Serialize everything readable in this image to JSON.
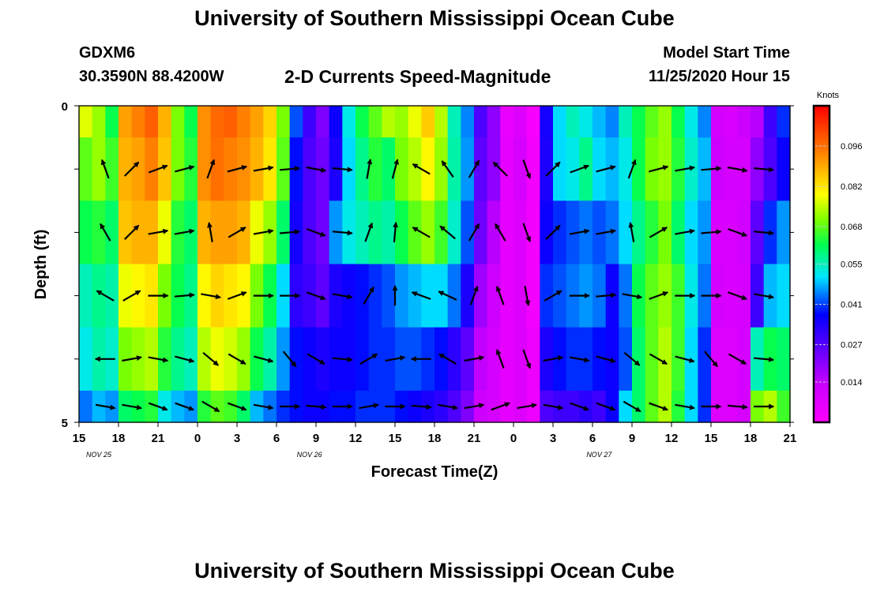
{
  "header": {
    "title": "University of Southern Mississippi Ocean Cube",
    "station_id": "GDXM6",
    "coordinates": "30.3590N 88.4200W",
    "plot_title": "2-D Currents Speed-Magnitude",
    "model_start_label": "Model Start Time",
    "model_start_value": "11/25/2020 Hour 15"
  },
  "footer": {
    "title": "University of Southern Mississippi Ocean Cube"
  },
  "chart_data": {
    "type": "heatmap",
    "title": "2-D Currents Speed-Magnitude",
    "xlabel": "Forecast Time(Z)",
    "ylabel": "Depth (ft)",
    "x_tick_labels": [
      "15",
      "18",
      "21",
      "0",
      "3",
      "6",
      "9",
      "12",
      "15",
      "18",
      "21",
      "0",
      "3",
      "6",
      "9",
      "12",
      "15",
      "18",
      "21"
    ],
    "date_labels": [
      {
        "label": "NOV  25",
        "forecast_hour": 1.5
      },
      {
        "label": "NOV  26",
        "forecast_hour": 17.5
      },
      {
        "label": "NOV  27",
        "forecast_hour": 39.5
      }
    ],
    "x_range_forecast_hours": [
      0,
      54
    ],
    "y_tick_labels": [
      "0",
      "5"
    ],
    "y_range_ft": [
      0,
      5
    ],
    "colorbar": {
      "title": "Knots",
      "tick_labels": [
        "0.096",
        "0.082",
        "0.068",
        "0.055",
        "0.041",
        "0.027",
        "0.014"
      ],
      "range": [
        0,
        0.11
      ]
    },
    "depth_levels_ft": [
      0.25,
      1,
      2,
      3,
      4,
      4.75
    ],
    "time_hours": [
      0,
      1,
      2,
      3,
      4,
      5,
      6,
      7,
      8,
      9,
      10,
      11,
      12,
      13,
      14,
      15,
      16,
      17,
      18,
      19,
      20,
      21,
      22,
      23,
      24,
      25,
      26,
      27,
      28,
      29,
      30,
      31,
      32,
      33,
      34,
      35,
      36,
      37,
      38,
      39,
      40,
      41,
      42,
      43,
      44,
      45,
      46,
      47,
      48,
      49,
      50,
      51,
      52,
      53
    ],
    "speed_knots": [
      [
        0.077,
        0.072,
        0.062,
        0.09,
        0.094,
        0.098,
        0.088,
        0.07,
        0.062,
        0.092,
        0.097,
        0.098,
        0.094,
        0.09,
        0.084,
        0.07,
        0.042,
        0.03,
        0.022,
        0.036,
        0.052,
        0.062,
        0.068,
        0.074,
        0.072,
        0.078,
        0.085,
        0.074,
        0.055,
        0.045,
        0.028,
        0.02,
        0.005,
        0.008,
        0.002,
        0.035,
        0.05,
        0.055,
        0.052,
        0.048,
        0.045,
        0.055,
        0.062,
        0.068,
        0.072,
        0.062,
        0.052,
        0.045,
        0.01,
        0.009,
        0.012,
        0.015,
        0.03,
        0.04
      ],
      [
        0.068,
        0.072,
        0.066,
        0.088,
        0.09,
        0.094,
        0.086,
        0.07,
        0.064,
        0.092,
        0.096,
        0.094,
        0.092,
        0.088,
        0.082,
        0.068,
        0.038,
        0.028,
        0.024,
        0.034,
        0.05,
        0.058,
        0.064,
        0.06,
        0.07,
        0.074,
        0.08,
        0.072,
        0.056,
        0.046,
        0.026,
        0.02,
        0.006,
        0.01,
        0.003,
        0.034,
        0.05,
        0.052,
        0.058,
        0.05,
        0.048,
        0.052,
        0.062,
        0.07,
        0.072,
        0.064,
        0.054,
        0.048,
        0.012,
        0.01,
        0.01,
        0.02,
        0.028,
        0.036
      ],
      [
        0.062,
        0.064,
        0.06,
        0.086,
        0.088,
        0.088,
        0.078,
        0.064,
        0.06,
        0.088,
        0.09,
        0.09,
        0.088,
        0.078,
        0.072,
        0.06,
        0.035,
        0.028,
        0.024,
        0.046,
        0.052,
        0.055,
        0.058,
        0.056,
        0.062,
        0.068,
        0.072,
        0.066,
        0.054,
        0.042,
        0.024,
        0.015,
        0.006,
        0.008,
        0.003,
        0.036,
        0.04,
        0.042,
        0.044,
        0.042,
        0.044,
        0.05,
        0.058,
        0.064,
        0.07,
        0.06,
        0.05,
        0.046,
        0.009,
        0.009,
        0.011,
        0.026,
        0.04,
        0.046
      ],
      [
        0.055,
        0.058,
        0.056,
        0.078,
        0.08,
        0.082,
        0.07,
        0.062,
        0.058,
        0.08,
        0.084,
        0.082,
        0.08,
        0.07,
        0.062,
        0.05,
        0.032,
        0.03,
        0.026,
        0.034,
        0.036,
        0.038,
        0.04,
        0.042,
        0.046,
        0.048,
        0.05,
        0.05,
        0.044,
        0.034,
        0.018,
        0.012,
        0.006,
        0.008,
        0.003,
        0.04,
        0.042,
        0.044,
        0.046,
        0.044,
        0.036,
        0.044,
        0.062,
        0.068,
        0.072,
        0.066,
        0.052,
        0.044,
        0.01,
        0.009,
        0.01,
        0.03,
        0.048,
        0.05
      ],
      [
        0.052,
        0.056,
        0.054,
        0.07,
        0.072,
        0.074,
        0.064,
        0.058,
        0.055,
        0.074,
        0.078,
        0.076,
        0.072,
        0.062,
        0.056,
        0.046,
        0.038,
        0.036,
        0.034,
        0.036,
        0.036,
        0.038,
        0.04,
        0.04,
        0.042,
        0.042,
        0.04,
        0.038,
        0.032,
        0.026,
        0.014,
        0.01,
        0.006,
        0.008,
        0.004,
        0.034,
        0.038,
        0.04,
        0.04,
        0.038,
        0.036,
        0.042,
        0.06,
        0.068,
        0.074,
        0.066,
        0.05,
        0.04,
        0.008,
        0.008,
        0.01,
        0.055,
        0.062,
        0.06
      ],
      [
        0.044,
        0.048,
        0.046,
        0.06,
        0.062,
        0.064,
        0.052,
        0.048,
        0.046,
        0.064,
        0.068,
        0.066,
        0.06,
        0.048,
        0.044,
        0.04,
        0.038,
        0.036,
        0.036,
        0.038,
        0.038,
        0.04,
        0.04,
        0.04,
        0.038,
        0.036,
        0.034,
        0.032,
        0.028,
        0.022,
        0.012,
        0.01,
        0.006,
        0.008,
        0.004,
        0.028,
        0.03,
        0.03,
        0.032,
        0.03,
        0.036,
        0.05,
        0.06,
        0.068,
        0.074,
        0.064,
        0.05,
        0.04,
        0.008,
        0.008,
        0.01,
        0.07,
        0.074,
        0.066
      ]
    ],
    "vectors": {
      "times": [
        2,
        4,
        6,
        8,
        10,
        12,
        14,
        16,
        18,
        20,
        22,
        24,
        26,
        28,
        30,
        32,
        34,
        36,
        38,
        40,
        42,
        44,
        46,
        48,
        50,
        52
      ],
      "depths_ft": [
        1,
        2,
        3,
        4,
        4.75
      ],
      "directions_deg": [
        [
          340,
          45,
          70,
          75,
          20,
          75,
          80,
          85,
          100,
          95,
          10,
          15,
          300,
          325,
          30,
          315,
          160,
          45,
          70,
          75,
          20,
          75,
          80,
          85,
          100,
          95
        ],
        [
          330,
          45,
          80,
          80,
          350,
          60,
          80,
          85,
          110,
          95,
          20,
          5,
          300,
          310,
          30,
          330,
          160,
          45,
          80,
          80,
          350,
          60,
          80,
          85,
          110,
          95
        ],
        [
          300,
          60,
          90,
          85,
          100,
          70,
          90,
          90,
          110,
          100,
          30,
          0,
          290,
          295,
          20,
          340,
          170,
          60,
          90,
          85,
          100,
          70,
          90,
          90,
          110,
          100
        ],
        [
          270,
          80,
          100,
          105,
          130,
          120,
          105,
          140,
          120,
          95,
          60,
          80,
          270,
          300,
          80,
          340,
          160,
          80,
          100,
          105,
          130,
          120,
          105,
          140,
          120,
          95
        ],
        [
          100,
          100,
          110,
          110,
          120,
          110,
          100,
          90,
          95,
          90,
          80,
          90,
          95,
          100,
          80,
          70,
          80,
          100,
          110,
          110,
          120,
          110,
          100,
          90,
          95,
          90
        ]
      ]
    }
  },
  "colors": {
    "axis": "#000000",
    "arrow": "#000000",
    "tick_mark": "#cccccc",
    "background": "#ffffff"
  }
}
